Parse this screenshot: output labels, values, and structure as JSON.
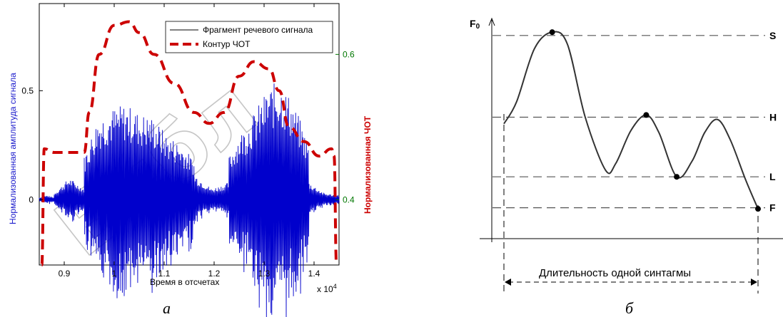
{
  "watermark": "Библ",
  "chart_data": [
    {
      "type": "line",
      "panel_caption": "а",
      "xlabel": "Время в отсчетах",
      "x_exponent": "x 10",
      "x_exponent_power": "4",
      "ylabel_left": "Нормализованная амплитуда сигнала",
      "ylabel_right": "Нормализованная ЧОТ",
      "xlim": [
        8500,
        14500
      ],
      "ylim_left": [
        -0.3,
        0.9
      ],
      "ylim_right": [
        0.31,
        0.67
      ],
      "x_ticks": [
        "0.9",
        "1",
        "1.1",
        "1.2",
        "1.3",
        "1.4"
      ],
      "x_tick_values": [
        9000,
        10000,
        11000,
        12000,
        13000,
        14000
      ],
      "y_left_ticks": [
        "0",
        "0.5"
      ],
      "y_left_tick_values": [
        0,
        0.5
      ],
      "y_right_ticks": [
        "0.4",
        "0.6"
      ],
      "y_right_tick_values": [
        0.4,
        0.6
      ],
      "legend_position": "top-right",
      "colors": {
        "signal": "#0000cc",
        "contour": "#cc0000",
        "right_axis": "#007700"
      },
      "series": [
        {
          "name": "Фрагмент речевого сигнала",
          "axis": "left",
          "style": "solid",
          "segments": [
            {
              "x_start": 8500,
              "x_end": 8800,
              "envelope": [
                0.01,
                0.02,
                0.01
              ]
            },
            {
              "x_start": 8800,
              "x_end": 9400,
              "envelope": [
                0.03,
                0.1,
                0.05
              ]
            },
            {
              "x_start": 9400,
              "x_end": 11600,
              "envelope": [
                0.2,
                0.38,
                0.42,
                0.44,
                0.4,
                0.38,
                0.3,
                0.26,
                0.18
              ]
            },
            {
              "x_start": 11600,
              "x_end": 12300,
              "envelope": [
                0.12,
                0.05,
                0.08
              ]
            },
            {
              "x_start": 12300,
              "x_end": 13900,
              "envelope": [
                0.2,
                0.3,
                0.36,
                0.44,
                0.52,
                0.55,
                0.48,
                0.38,
                0.25
              ]
            },
            {
              "x_start": 13900,
              "x_end": 14500,
              "envelope": [
                0.08,
                0.03,
                0.02
              ]
            }
          ]
        },
        {
          "name": "Контур ЧОТ",
          "axis": "right",
          "style": "dashed",
          "x": [
            8550,
            8600,
            8800,
            9400,
            9500,
            9700,
            10000,
            10300,
            10500,
            10800,
            11200,
            11600,
            11900,
            12200,
            12500,
            12800,
            13100,
            13300,
            13500,
            13800,
            14100,
            14350,
            14400,
            14450
          ],
          "y": [
            0.31,
            0.47,
            0.465,
            0.465,
            0.52,
            0.6,
            0.64,
            0.645,
            0.63,
            0.6,
            0.56,
            0.52,
            0.505,
            0.52,
            0.57,
            0.59,
            0.58,
            0.55,
            0.5,
            0.48,
            0.46,
            0.47,
            0.46,
            0.31
          ]
        }
      ]
    },
    {
      "type": "diagram-line",
      "panel_caption": "б",
      "y_axis_label": "F",
      "y_axis_label_sub": "0",
      "levels": [
        {
          "name": "S",
          "value": 0.92
        },
        {
          "name": "H",
          "value": 0.55
        },
        {
          "name": "L",
          "value": 0.28
        },
        {
          "name": "F",
          "value": 0.14
        }
      ],
      "curve_points": [
        {
          "x": 0.0,
          "y": 0.52
        },
        {
          "x": 0.05,
          "y": 0.62
        },
        {
          "x": 0.12,
          "y": 0.86
        },
        {
          "x": 0.19,
          "y": 0.935
        },
        {
          "x": 0.25,
          "y": 0.88
        },
        {
          "x": 0.32,
          "y": 0.55
        },
        {
          "x": 0.4,
          "y": 0.31
        },
        {
          "x": 0.44,
          "y": 0.34
        },
        {
          "x": 0.5,
          "y": 0.49
        },
        {
          "x": 0.56,
          "y": 0.56
        },
        {
          "x": 0.61,
          "y": 0.48
        },
        {
          "x": 0.68,
          "y": 0.28
        },
        {
          "x": 0.74,
          "y": 0.35
        },
        {
          "x": 0.79,
          "y": 0.48
        },
        {
          "x": 0.84,
          "y": 0.54
        },
        {
          "x": 0.89,
          "y": 0.45
        },
        {
          "x": 0.95,
          "y": 0.27
        },
        {
          "x": 1.0,
          "y": 0.135
        }
      ],
      "marked_points": [
        {
          "x": 0.19,
          "y": 0.935,
          "level": "S"
        },
        {
          "x": 0.56,
          "y": 0.56,
          "level": "H"
        },
        {
          "x": 0.68,
          "y": 0.28,
          "level": "L"
        },
        {
          "x": 1.0,
          "y": 0.135,
          "level": "F"
        }
      ],
      "annotation": "Длительность одной синтагмы"
    }
  ]
}
